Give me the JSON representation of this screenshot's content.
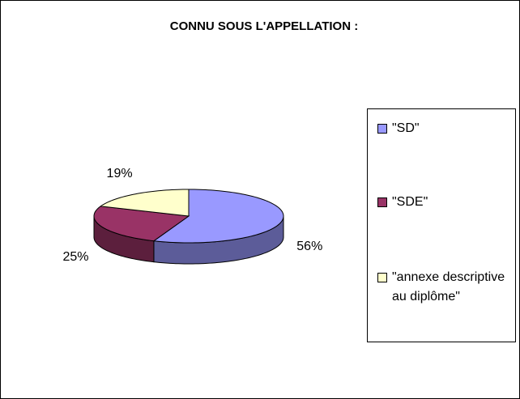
{
  "chart_data": {
    "type": "pie3d",
    "title": "CONNU SOUS L'APPELLATION :",
    "categories": [
      "\"SD\"",
      "\"SDE\"",
      "\"annexe descriptive au diplôme\""
    ],
    "values": [
      56,
      25,
      19
    ],
    "value_labels": [
      "56%",
      "25%",
      "19%"
    ],
    "colors": [
      "#9999ff",
      "#993366",
      "#ffffcc"
    ],
    "legend": "right"
  }
}
